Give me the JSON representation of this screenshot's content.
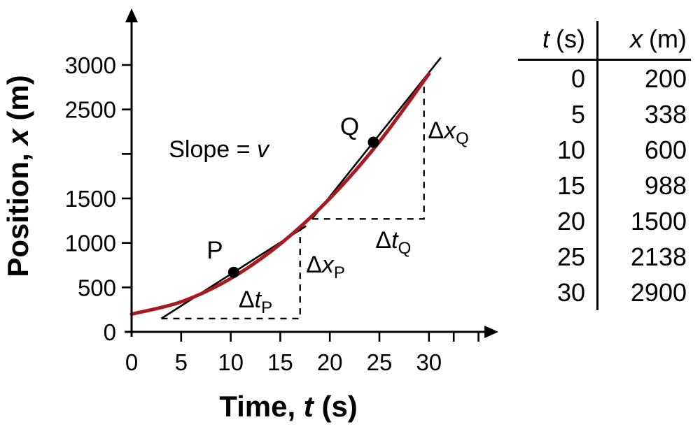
{
  "figure": {
    "background": "#ffffff",
    "text_color": "#000000"
  },
  "chart_data": {
    "type": "line",
    "title": "",
    "xlabel": {
      "prefix": "Time, ",
      "var": "t",
      "suffix": " (s)"
    },
    "ylabel": {
      "prefix": "Position, ",
      "var": "x",
      "suffix": " (m)"
    },
    "x": [
      0,
      5,
      10,
      15,
      20,
      25,
      30
    ],
    "series": [
      {
        "name": "position-curve",
        "color": "#a81a20",
        "values": [
          200,
          338,
          600,
          988,
          1500,
          2138,
          2900
        ]
      }
    ],
    "xlim": [
      0,
      36.5
    ],
    "ylim": [
      0,
      3650
    ],
    "grid": false,
    "legend": "none",
    "x_ticks": [
      {
        "t": 0,
        "label": "0"
      },
      {
        "t": 5,
        "label": "5"
      },
      {
        "t": 10,
        "label": "10"
      },
      {
        "t": 15,
        "label": "15"
      },
      {
        "t": 20,
        "label": "20"
      },
      {
        "t": 25,
        "label": "25"
      },
      {
        "t": 30,
        "label": "30"
      },
      {
        "t": 32.5,
        "label": ""
      },
      {
        "t": 35,
        "label": ""
      }
    ],
    "y_ticks": [
      {
        "v": 0,
        "label": "0"
      },
      {
        "v": 500,
        "label": "500"
      },
      {
        "v": 1000,
        "label": "1000"
      },
      {
        "v": 1500,
        "label": "1500"
      },
      {
        "v": 2000,
        "label": ""
      },
      {
        "v": 2500,
        "label": "2500"
      },
      {
        "v": 3000,
        "label": "3000"
      }
    ],
    "annotations": {
      "slope_label": {
        "prefix": "Slope = ",
        "var": "v",
        "t": 8.8,
        "x": 1963
      },
      "points": [
        {
          "name": "P",
          "label": "P",
          "t": 10.3,
          "x": 670,
          "label_t": 8.4,
          "label_x": 825
        },
        {
          "name": "Q",
          "label": "Q",
          "t": 24.4,
          "x": 2132,
          "label_t": 22.0,
          "label_x": 2215
        }
      ],
      "tangents": [
        {
          "name": "tangent-at-P",
          "t1": 3.0,
          "x1": 150,
          "t2": 17.6,
          "x2": 1190
        },
        {
          "name": "tangent-at-Q",
          "t1": 18.2,
          "x1": 1270,
          "t2": 31.2,
          "x2": 3083
        }
      ],
      "rise_run_triangles": [
        {
          "name": "P",
          "t_start": 3.0,
          "t_corner": 17.0,
          "x_base": 150,
          "x_top": 1147,
          "dt_label": {
            "delta": "Δ",
            "var": "t",
            "sub": "P",
            "t": 12.5,
            "x": 275,
            "anchor": "middle"
          },
          "dx_label": {
            "delta": "Δ",
            "var": "x",
            "sub": "P",
            "t": 17.6,
            "x": 668,
            "anchor": "start"
          }
        },
        {
          "name": "Q",
          "t_start": 18.2,
          "t_corner": 29.5,
          "x_base": 1270,
          "x_top": 2845,
          "dt_label": {
            "delta": "Δ",
            "var": "t",
            "sub": "Q",
            "t": 26.4,
            "x": 942,
            "anchor": "middle"
          },
          "dx_label": {
            "delta": "Δ",
            "var": "x",
            "sub": "Q",
            "t": 29.9,
            "x": 2175,
            "anchor": "start"
          }
        }
      ]
    }
  },
  "table": {
    "headers": [
      {
        "var": "t",
        "unit": "(s)"
      },
      {
        "var": "x",
        "unit": "(m)"
      }
    ],
    "rows": [
      [
        "0",
        "200"
      ],
      [
        "5",
        "338"
      ],
      [
        "10",
        "600"
      ],
      [
        "15",
        "988"
      ],
      [
        "20",
        "1500"
      ],
      [
        "25",
        "2138"
      ],
      [
        "30",
        "2900"
      ]
    ]
  }
}
